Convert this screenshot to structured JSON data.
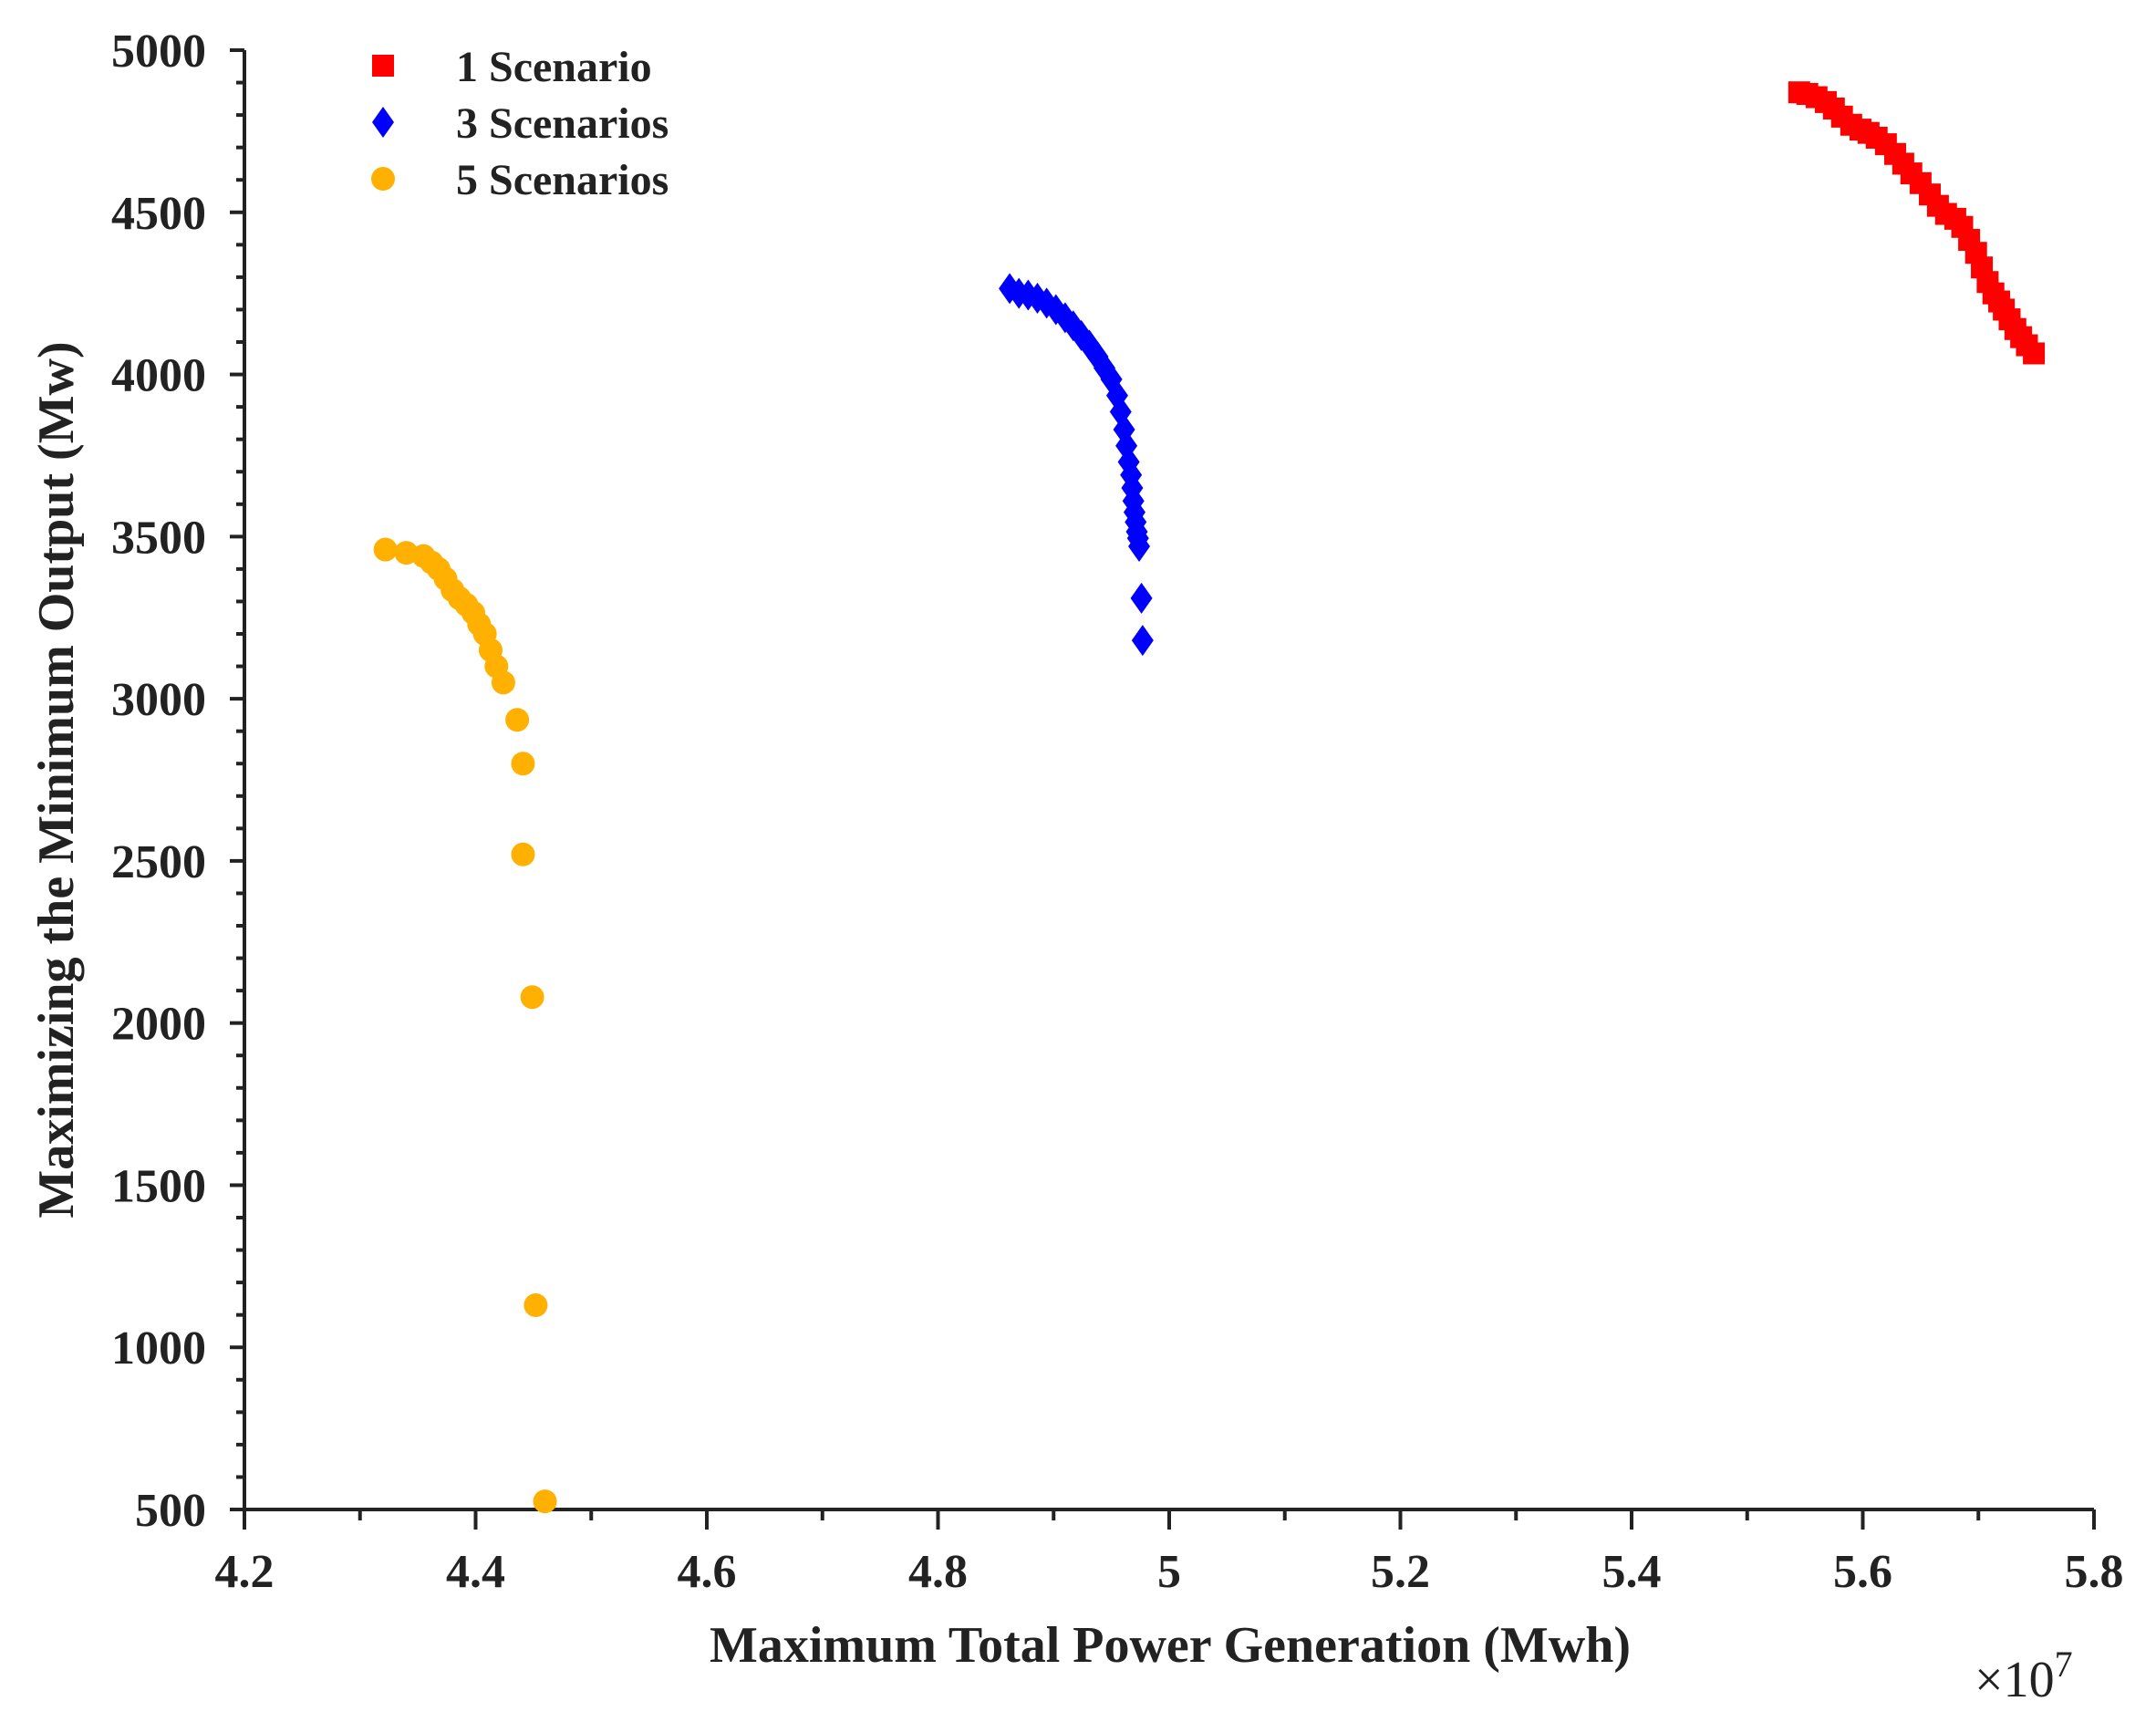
{
  "chart_data": {
    "type": "scatter",
    "title": "",
    "xlabel": "Maximum Total Power Generation (Mwh)",
    "ylabel": "Maximizing the Minimum Output (Mw)",
    "x_multiplier_base": "×10",
    "x_multiplier_exponent": "7",
    "xlim": [
      4.2,
      5.8
    ],
    "ylim": [
      500,
      5000
    ],
    "x_ticks": [
      4.2,
      4.4,
      4.6,
      4.8,
      5.0,
      5.2,
      5.4,
      5.6,
      5.8
    ],
    "x_tick_labels": [
      "4.2",
      "4.4",
      "4.6",
      "4.8",
      "5",
      "5.2",
      "5.4",
      "5.6",
      "5.8"
    ],
    "y_ticks": [
      500,
      1000,
      1500,
      2000,
      2500,
      3000,
      3500,
      4000,
      4500,
      5000
    ],
    "y_tick_labels": [
      "500",
      "1000",
      "1500",
      "2000",
      "2500",
      "3000",
      "3500",
      "4000",
      "4500",
      "5000"
    ],
    "grid": false,
    "legend_position": "top-left",
    "series": [
      {
        "name": "1 Scenario",
        "marker": "square",
        "color": "#ff0000",
        "x": [
          5.545,
          5.552,
          5.56,
          5.568,
          5.575,
          5.582,
          5.59,
          5.598,
          5.605,
          5.612,
          5.62,
          5.628,
          5.635,
          5.642,
          5.65,
          5.658,
          5.665,
          5.672,
          5.68,
          5.686,
          5.692,
          5.698,
          5.703,
          5.708,
          5.713,
          5.718,
          5.722,
          5.727,
          5.732,
          5.737,
          5.742,
          5.748
        ],
        "y": [
          4870,
          4865,
          4855,
          4840,
          4820,
          4795,
          4770,
          4755,
          4745,
          4730,
          4710,
          4680,
          4650,
          4620,
          4590,
          4555,
          4520,
          4495,
          4480,
          4455,
          4415,
          4375,
          4330,
          4285,
          4250,
          4225,
          4200,
          4170,
          4140,
          4115,
          4090,
          4065
        ]
      },
      {
        "name": "3 Scenarios",
        "marker": "diamond",
        "color": "#0000ff",
        "x": [
          4.862,
          4.87,
          4.878,
          4.886,
          4.894,
          4.902,
          4.91,
          4.917,
          4.924,
          4.931,
          4.938,
          4.944,
          4.95,
          4.955,
          4.958,
          4.961,
          4.963,
          4.965,
          4.967,
          4.968,
          4.969,
          4.97,
          4.971,
          4.972,
          4.973,
          4.974,
          4.976,
          4.977
        ],
        "y": [
          4265,
          4250,
          4245,
          4235,
          4220,
          4200,
          4175,
          4150,
          4120,
          4090,
          4055,
          4020,
          3985,
          3935,
          3885,
          3830,
          3780,
          3730,
          3690,
          3650,
          3610,
          3575,
          3545,
          3515,
          3495,
          3470,
          3310,
          3180
        ]
      },
      {
        "name": "5 Scenarios",
        "marker": "circle",
        "color": "#ffb000",
        "x": [
          4.322,
          4.34,
          4.355,
          4.362,
          4.368,
          4.374,
          4.38,
          4.386,
          4.392,
          4.398,
          4.403,
          4.408,
          4.413,
          4.418,
          4.424,
          4.436,
          4.441,
          4.441,
          4.449,
          4.452,
          4.46
        ],
        "y": [
          3460,
          3450,
          3440,
          3420,
          3400,
          3370,
          3335,
          3310,
          3290,
          3265,
          3230,
          3200,
          3150,
          3100,
          3050,
          2935,
          2800,
          2520,
          2080,
          1130,
          525
        ]
      }
    ]
  }
}
